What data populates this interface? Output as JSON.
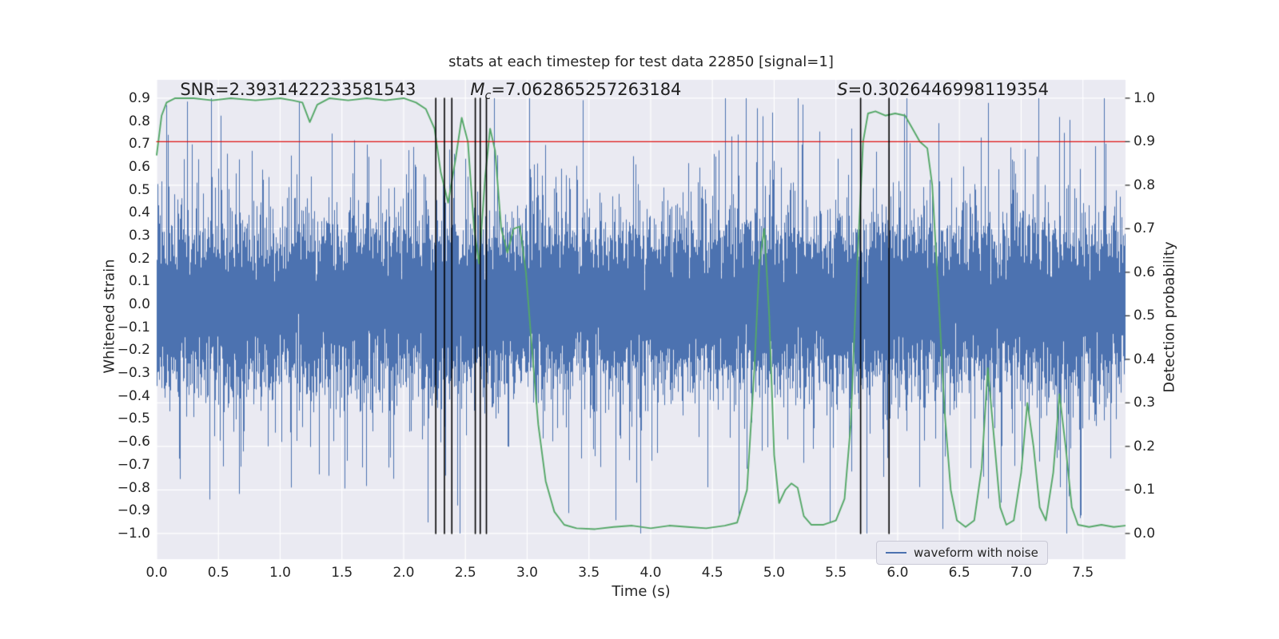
{
  "figure": {
    "background": "#ffffff",
    "axes_background": "#eaeaf2",
    "text_color": "#262626"
  },
  "chart_data": {
    "type": "line",
    "title": "stats at each timestep for test data 22850 [signal=1]",
    "xlabel": "Time (s)",
    "ylabel_left": "Whitened strain",
    "ylabel_right": "Detection probability",
    "xlim": [
      0,
      7.845
    ],
    "ylim_left": [
      -1.112,
      0.98
    ],
    "right_axis": {
      "min": 0.0,
      "max": 1.0,
      "strain_at_min": -1.0,
      "strain_at_max": 0.9
    },
    "x_ticks": {
      "values": [
        0,
        0.5,
        1,
        1.5,
        2,
        2.5,
        3,
        3.5,
        4,
        4.5,
        5,
        5.5,
        6,
        6.5,
        7,
        7.5
      ],
      "labels": [
        "0.0",
        "0.5",
        "1.0",
        "1.5",
        "2.0",
        "2.5",
        "3.0",
        "3.5",
        "4.0",
        "4.5",
        "5.0",
        "5.5",
        "6.0",
        "6.5",
        "7.0",
        "7.5"
      ]
    },
    "y_ticks_left": {
      "values": [
        0.9,
        0.8,
        0.7,
        0.6,
        0.5,
        0.4,
        0.3,
        0.2,
        0.1,
        0.0,
        -0.1,
        -0.2,
        -0.3,
        -0.4,
        -0.5,
        -0.6,
        -0.7,
        -0.8,
        -0.9,
        -1.0
      ],
      "labels": [
        "0.9",
        "0.8",
        "0.7",
        "0.6",
        "0.5",
        "0.4",
        "0.3",
        "0.2",
        "0.1",
        "0.0",
        "−0.1",
        "−0.2",
        "−0.3",
        "−0.4",
        "−0.5",
        "−0.6",
        "−0.7",
        "−0.8",
        "−0.9",
        "−1.0"
      ]
    },
    "y_ticks_right": {
      "values": [
        1.0,
        0.9,
        0.8,
        0.7,
        0.6,
        0.5,
        0.4,
        0.3,
        0.2,
        0.1,
        0.0
      ],
      "labels": [
        "1.0",
        "0.9",
        "0.8",
        "0.7",
        "0.6",
        "0.5",
        "0.4",
        "0.3",
        "0.2",
        "0.1",
        "0.0"
      ]
    },
    "grid": {
      "show": true,
      "color": "#ffffff",
      "horizontal_from": "right_axis"
    },
    "threshold_line": {
      "value": 0.9,
      "axis": "right",
      "color": "#dd1111"
    },
    "event_vlines": {
      "x": [
        2.26,
        2.33,
        2.39,
        2.58,
        2.62,
        2.67,
        5.7,
        5.93
      ],
      "color": "#000000",
      "y_range": [
        -1.0,
        0.9
      ]
    },
    "noise_series": {
      "name": "waveform with noise",
      "color": "#4c72b0",
      "seed": 22850,
      "sigma": 0.16,
      "heavy_sigma": 0.36,
      "heavy_prob": 0.08,
      "samples_per_column": 16,
      "clip": [
        -1.0,
        0.9
      ]
    },
    "probability_series": {
      "name": "detection probability",
      "color": "#55a868",
      "axis": "right",
      "points": [
        [
          0.0,
          0.87
        ],
        [
          0.04,
          0.96
        ],
        [
          0.08,
          0.99
        ],
        [
          0.15,
          1.0
        ],
        [
          0.3,
          1.0
        ],
        [
          0.45,
          0.995
        ],
        [
          0.6,
          1.0
        ],
        [
          0.8,
          0.995
        ],
        [
          1.0,
          1.0
        ],
        [
          1.1,
          0.995
        ],
        [
          1.18,
          0.99
        ],
        [
          1.24,
          0.945
        ],
        [
          1.3,
          0.985
        ],
        [
          1.4,
          1.0
        ],
        [
          1.55,
          0.995
        ],
        [
          1.7,
          1.0
        ],
        [
          1.85,
          0.995
        ],
        [
          2.0,
          1.0
        ],
        [
          2.1,
          0.99
        ],
        [
          2.18,
          0.975
        ],
        [
          2.25,
          0.93
        ],
        [
          2.3,
          0.83
        ],
        [
          2.36,
          0.76
        ],
        [
          2.42,
          0.86
        ],
        [
          2.47,
          0.955
        ],
        [
          2.52,
          0.9
        ],
        [
          2.57,
          0.7
        ],
        [
          2.61,
          0.62
        ],
        [
          2.66,
          0.82
        ],
        [
          2.7,
          0.93
        ],
        [
          2.74,
          0.88
        ],
        [
          2.79,
          0.7
        ],
        [
          2.84,
          0.645
        ],
        [
          2.89,
          0.7
        ],
        [
          2.94,
          0.705
        ],
        [
          2.99,
          0.6
        ],
        [
          3.04,
          0.42
        ],
        [
          3.09,
          0.25
        ],
        [
          3.15,
          0.12
        ],
        [
          3.22,
          0.05
        ],
        [
          3.3,
          0.02
        ],
        [
          3.4,
          0.012
        ],
        [
          3.55,
          0.01
        ],
        [
          3.7,
          0.015
        ],
        [
          3.85,
          0.018
        ],
        [
          4.0,
          0.012
        ],
        [
          4.15,
          0.018
        ],
        [
          4.3,
          0.015
        ],
        [
          4.45,
          0.012
        ],
        [
          4.6,
          0.018
        ],
        [
          4.7,
          0.025
        ],
        [
          4.78,
          0.1
        ],
        [
          4.84,
          0.38
        ],
        [
          4.88,
          0.62
        ],
        [
          4.92,
          0.7
        ],
        [
          4.96,
          0.5
        ],
        [
          5.0,
          0.18
        ],
        [
          5.04,
          0.07
        ],
        [
          5.09,
          0.1
        ],
        [
          5.14,
          0.115
        ],
        [
          5.19,
          0.105
        ],
        [
          5.24,
          0.04
        ],
        [
          5.3,
          0.02
        ],
        [
          5.4,
          0.02
        ],
        [
          5.5,
          0.03
        ],
        [
          5.57,
          0.08
        ],
        [
          5.62,
          0.25
        ],
        [
          5.67,
          0.6
        ],
        [
          5.72,
          0.9
        ],
        [
          5.76,
          0.965
        ],
        [
          5.82,
          0.97
        ],
        [
          5.9,
          0.96
        ],
        [
          5.98,
          0.965
        ],
        [
          6.06,
          0.96
        ],
        [
          6.12,
          0.93
        ],
        [
          6.18,
          0.9
        ],
        [
          6.24,
          0.885
        ],
        [
          6.28,
          0.8
        ],
        [
          6.33,
          0.55
        ],
        [
          6.38,
          0.28
        ],
        [
          6.43,
          0.1
        ],
        [
          6.48,
          0.03
        ],
        [
          6.55,
          0.015
        ],
        [
          6.62,
          0.03
        ],
        [
          6.68,
          0.15
        ],
        [
          6.73,
          0.38
        ],
        [
          6.78,
          0.22
        ],
        [
          6.83,
          0.06
        ],
        [
          6.88,
          0.02
        ],
        [
          6.94,
          0.03
        ],
        [
          7.0,
          0.14
        ],
        [
          7.05,
          0.3
        ],
        [
          7.1,
          0.2
        ],
        [
          7.15,
          0.06
        ],
        [
          7.2,
          0.03
        ],
        [
          7.26,
          0.14
        ],
        [
          7.31,
          0.32
        ],
        [
          7.36,
          0.2
        ],
        [
          7.41,
          0.06
        ],
        [
          7.46,
          0.02
        ],
        [
          7.55,
          0.015
        ],
        [
          7.65,
          0.02
        ],
        [
          7.75,
          0.015
        ],
        [
          7.84,
          0.018
        ]
      ]
    },
    "annotations": [
      {
        "italic": "",
        "sub": "",
        "text": "SNR=2.3931422233581543",
        "x": 0.19
      },
      {
        "italic": "M",
        "sub": "c",
        "text": "=7.062865257263184",
        "x": 2.54
      },
      {
        "italic": "S",
        "sub": "",
        "text": "=0.3026446998119354",
        "x": 5.51
      }
    ],
    "legend": {
      "label": "waveform with noise",
      "color": "#4c72b0",
      "position": "lower right"
    }
  }
}
